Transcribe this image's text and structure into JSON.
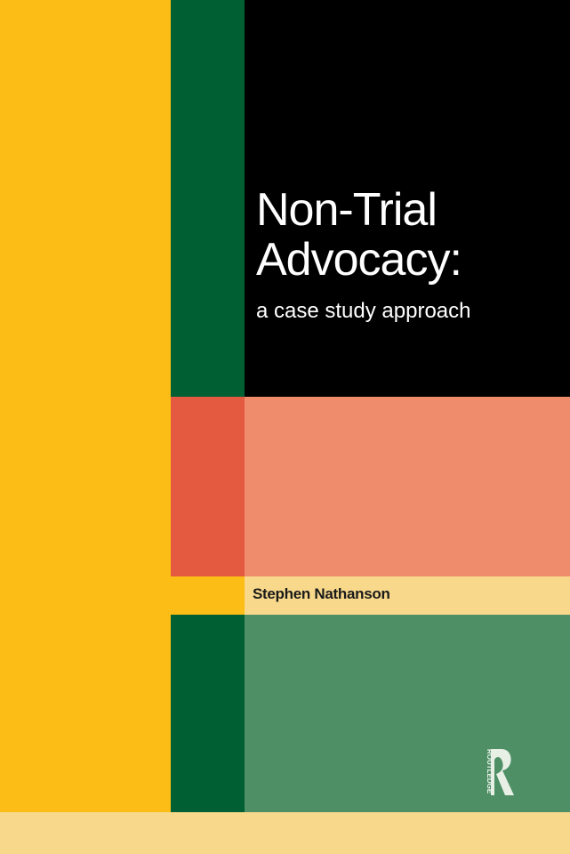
{
  "cover": {
    "title_line1": "Non-Trial",
    "title_line2": "Advocacy:",
    "subtitle": "a case study approach",
    "author": "Stephen Nathanson",
    "publisher_logo_text": "ROUTLEDGE"
  },
  "colors": {
    "yellow": "#fbbd16",
    "pale_yellow": "#f8d98c",
    "dark_green": "#005f33",
    "black": "#000000",
    "red": "#e45a40",
    "salmon": "#ee8c6c",
    "green": "#4e8f66"
  }
}
